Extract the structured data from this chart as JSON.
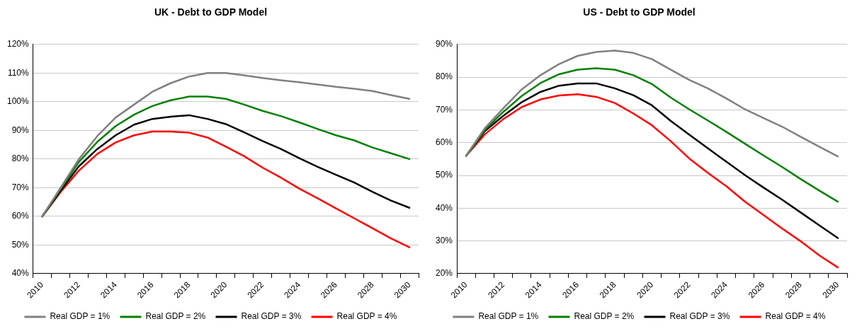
{
  "chart_data": [
    {
      "type": "line",
      "title": "UK - Debt to GDP Model",
      "categories": [
        "2010",
        null,
        "2012",
        null,
        "2014",
        null,
        "2016",
        null,
        "2018",
        null,
        "2020",
        null,
        "2022",
        null,
        "2024",
        null,
        "2026",
        null,
        "2028",
        null,
        "2030"
      ],
      "series": [
        {
          "name": "Real GDP = 1%",
          "color": "#808080",
          "values": [
            60,
            70,
            80,
            88,
            94.5,
            99,
            103.5,
            106.5,
            108.8,
            110,
            110,
            109.2,
            108.3,
            107.5,
            106.8,
            106,
            105.2,
            104.5,
            103.7,
            102.3,
            101
          ]
        },
        {
          "name": "Real GDP = 2%",
          "color": "#008000",
          "values": [
            60,
            69.5,
            79,
            86,
            91.5,
            95.5,
            98.5,
            100.5,
            101.8,
            101.8,
            101,
            99,
            96.8,
            95,
            92.8,
            90.5,
            88.3,
            86.5,
            84,
            82,
            80
          ]
        },
        {
          "name": "Real GDP = 3%",
          "color": "#000000",
          "values": [
            60,
            69,
            77.5,
            83.5,
            88.3,
            92,
            94,
            94.8,
            95.3,
            94,
            92.2,
            89.3,
            86.3,
            83.5,
            80.3,
            77.3,
            74.5,
            71.8,
            68.5,
            65.5,
            63
          ]
        },
        {
          "name": "Real GDP = 4%",
          "color": "#ff0000",
          "values": [
            60,
            68.5,
            76,
            81.8,
            85.8,
            88.3,
            89.6,
            89.6,
            89.2,
            87.5,
            84.3,
            81,
            77,
            73.5,
            69.7,
            66.3,
            62.8,
            59.3,
            55.8,
            52.3,
            49.2
          ]
        }
      ],
      "ylim": [
        40,
        120
      ],
      "yticks": [
        {
          "value": 40,
          "label": "40%"
        },
        {
          "value": 50,
          "label": "50%"
        },
        {
          "value": 60,
          "label": "60%"
        },
        {
          "value": 70,
          "label": "70%"
        },
        {
          "value": 80,
          "label": "80%"
        },
        {
          "value": 90,
          "label": "90%"
        },
        {
          "value": 100,
          "label": "100%"
        },
        {
          "value": 110,
          "label": "110%"
        },
        {
          "value": 120,
          "label": "120%"
        }
      ],
      "grid": "y",
      "legend": "bottom",
      "marker": "none",
      "line_style": "solid"
    },
    {
      "type": "line",
      "title": "US - Debt to GDP Model",
      "categories": [
        "2010",
        null,
        "2012",
        null,
        "2014",
        null,
        "2016",
        null,
        "2018",
        null,
        "2020",
        null,
        "2022",
        null,
        "2024",
        null,
        "2026",
        null,
        "2028",
        null,
        "2030"
      ],
      "series": [
        {
          "name": "Real GDP = 1%",
          "color": "#808080",
          "values": [
            56,
            64.4,
            70.5,
            76.3,
            80.6,
            84,
            86.5,
            87.7,
            88.1,
            87.4,
            85.5,
            82.3,
            79.2,
            76.6,
            73.5,
            70.2,
            67.5,
            64.9,
            61.8,
            58.8,
            55.8
          ]
        },
        {
          "name": "Real GDP = 2%",
          "color": "#008000",
          "values": [
            56,
            63.9,
            69.4,
            74.3,
            78.2,
            80.9,
            82.3,
            82.7,
            82.3,
            80.6,
            77.9,
            73.8,
            70.2,
            66.8,
            63.3,
            59.7,
            56.1,
            52.6,
            48.9,
            45.4,
            42
          ]
        },
        {
          "name": "Real GDP = 3%",
          "color": "#000000",
          "values": [
            56,
            63.5,
            68.2,
            72.4,
            75.5,
            77.4,
            78.1,
            78.1,
            76.6,
            74.5,
            71.4,
            66.7,
            62.5,
            58.3,
            54.2,
            50.1,
            46.3,
            42.6,
            38.7,
            34.8,
            30.9
          ]
        },
        {
          "name": "Real GDP = 4%",
          "color": "#ff0000",
          "values": [
            56,
            62.5,
            67.2,
            70.9,
            73.2,
            74.4,
            74.8,
            74,
            72.1,
            68.9,
            65.3,
            60.5,
            55.2,
            50.8,
            46.7,
            42,
            37.9,
            33.8,
            29.9,
            25.6,
            21.9
          ]
        }
      ],
      "ylim": [
        20,
        90
      ],
      "yticks": [
        {
          "value": 20,
          "label": "20%"
        },
        {
          "value": 30,
          "label": "30%"
        },
        {
          "value": 40,
          "label": "40%"
        },
        {
          "value": 50,
          "label": "50%"
        },
        {
          "value": 60,
          "label": "60%"
        },
        {
          "value": 70,
          "label": "70%"
        },
        {
          "value": 80,
          "label": "80%"
        },
        {
          "value": 90,
          "label": "90%"
        }
      ],
      "grid": "y",
      "legend": "bottom",
      "marker": "none",
      "line_style": "solid"
    }
  ]
}
